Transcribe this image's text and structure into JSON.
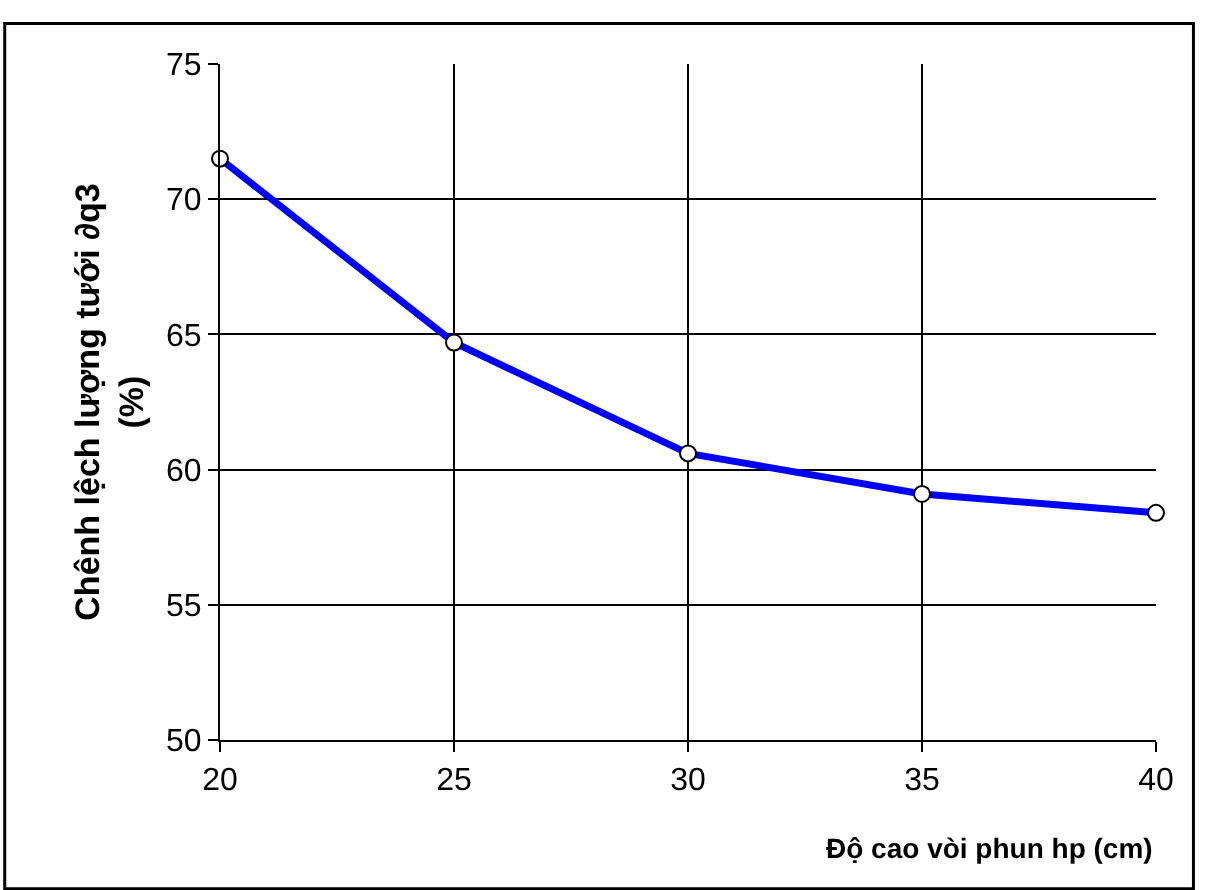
{
  "chart_data": {
    "type": "line",
    "xlabel": "Độ cao vòi phun hp (cm)",
    "ylabel": "Chênh lệch lượng tưới ∂q3\n(%)",
    "x": [
      20,
      25,
      30,
      35,
      40
    ],
    "series": [
      {
        "color": "#0000ff",
        "values": [
          71.5,
          64.7,
          60.6,
          59.1,
          58.4
        ]
      }
    ],
    "xlim": [
      20,
      40
    ],
    "xticks": [
      20,
      25,
      30,
      35,
      40
    ],
    "ylim": [
      50,
      75
    ],
    "yticks": [
      50,
      55,
      60,
      65,
      70,
      75
    ],
    "grid": true,
    "marker": "circle",
    "line_style": "solid",
    "legend": false
  }
}
